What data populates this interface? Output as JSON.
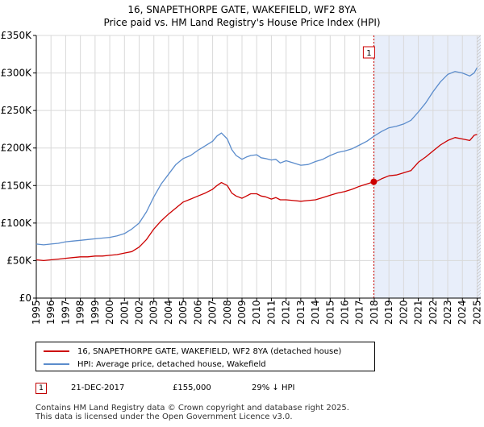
{
  "chart_data": {
    "type": "line",
    "title": "16, SNAPETHORPE GATE, WAKEFIELD, WF2 8YA",
    "subtitle": "Price paid vs. HM Land Registry's House Price Index (HPI)",
    "xlim": [
      1995,
      2025.25
    ],
    "ylim": [
      0,
      350000
    ],
    "y_ticks": [
      0,
      50000,
      100000,
      150000,
      200000,
      250000,
      300000,
      350000
    ],
    "y_tick_labels": [
      "£0",
      "£50K",
      "£100K",
      "£150K",
      "£200K",
      "£250K",
      "£300K",
      "£350K"
    ],
    "x_ticks": [
      1995,
      1996,
      1997,
      1998,
      1999,
      2000,
      2001,
      2002,
      2003,
      2004,
      2005,
      2006,
      2007,
      2008,
      2009,
      2010,
      2011,
      2012,
      2013,
      2014,
      2015,
      2016,
      2017,
      2018,
      2019,
      2020,
      2021,
      2022,
      2023,
      2024,
      2025
    ],
    "x_tick_labels": [
      "1995",
      "1996",
      "1997",
      "1998",
      "1999",
      "2000",
      "2001",
      "2002",
      "2003",
      "2004",
      "2005",
      "2006",
      "2007",
      "2008",
      "2009",
      "2010",
      "2011",
      "2012",
      "2013",
      "2014",
      "2015",
      "2016",
      "2017",
      "2018",
      "2019",
      "2020",
      "2021",
      "2022",
      "2023",
      "2024",
      "2025"
    ],
    "grid": true,
    "series": [
      {
        "name": "16, SNAPETHORPE GATE, WAKEFIELD, WF2 8YA (detached house)",
        "color": "#cc0000",
        "x": [
          1995.0,
          1995.5,
          1996.0,
          1996.5,
          1997.0,
          1997.5,
          1998.0,
          1998.5,
          1999.0,
          1999.5,
          2000.0,
          2000.5,
          2001.0,
          2001.5,
          2002.0,
          2002.5,
          2003.0,
          2003.5,
          2004.0,
          2004.5,
          2005.0,
          2005.5,
          2006.0,
          2006.5,
          2007.0,
          2007.3,
          2007.6,
          2008.0,
          2008.3,
          2008.6,
          2009.0,
          2009.3,
          2009.6,
          2010.0,
          2010.3,
          2010.6,
          2011.0,
          2011.3,
          2011.6,
          2012.0,
          2012.5,
          2013.0,
          2013.5,
          2014.0,
          2014.5,
          2015.0,
          2015.5,
          2016.0,
          2016.5,
          2017.0,
          2017.5,
          2017.97,
          2018.2,
          2018.5,
          2019.0,
          2019.5,
          2020.0,
          2020.5,
          2021.0,
          2021.5,
          2022.0,
          2022.5,
          2023.0,
          2023.5,
          2024.0,
          2024.5,
          2024.8,
          2025.0
        ],
        "values": [
          51000,
          50000,
          51000,
          52000,
          53000,
          54000,
          55000,
          55000,
          56000,
          56000,
          57000,
          58000,
          60000,
          62000,
          68000,
          78000,
          92000,
          103000,
          112000,
          120000,
          128000,
          132000,
          136000,
          140000,
          145000,
          150000,
          154000,
          150000,
          140000,
          136000,
          133000,
          136000,
          139000,
          139000,
          136000,
          135000,
          132000,
          134000,
          131000,
          131000,
          130000,
          129000,
          130000,
          131000,
          134000,
          137000,
          140000,
          142000,
          145000,
          149000,
          152000,
          155000,
          156000,
          159000,
          163000,
          164000,
          167000,
          170000,
          181000,
          188000,
          196000,
          204000,
          210000,
          214000,
          212000,
          210000,
          217000,
          218000
        ]
      },
      {
        "name": "HPI: Average price, detached house, Wakefield",
        "color": "#5b8ccc",
        "x": [
          1995.0,
          1995.5,
          1996.0,
          1996.5,
          1997.0,
          1997.5,
          1998.0,
          1998.5,
          1999.0,
          1999.5,
          2000.0,
          2000.5,
          2001.0,
          2001.5,
          2002.0,
          2002.5,
          2003.0,
          2003.5,
          2004.0,
          2004.5,
          2005.0,
          2005.5,
          2006.0,
          2006.5,
          2007.0,
          2007.3,
          2007.6,
          2008.0,
          2008.3,
          2008.6,
          2009.0,
          2009.3,
          2009.6,
          2010.0,
          2010.3,
          2010.6,
          2011.0,
          2011.3,
          2011.6,
          2012.0,
          2012.5,
          2013.0,
          2013.5,
          2014.0,
          2014.5,
          2015.0,
          2015.5,
          2016.0,
          2016.5,
          2017.0,
          2017.5,
          2018.0,
          2018.5,
          2019.0,
          2019.5,
          2020.0,
          2020.5,
          2021.0,
          2021.5,
          2022.0,
          2022.5,
          2023.0,
          2023.5,
          2024.0,
          2024.5,
          2024.8,
          2025.0
        ],
        "values": [
          72000,
          71000,
          72000,
          73000,
          75000,
          76000,
          77000,
          78000,
          79000,
          80000,
          81000,
          83000,
          86000,
          92000,
          100000,
          115000,
          135000,
          152000,
          165000,
          178000,
          186000,
          190000,
          197000,
          203000,
          209000,
          216000,
          220000,
          212000,
          198000,
          190000,
          185000,
          188000,
          190000,
          191000,
          187000,
          186000,
          184000,
          185000,
          180000,
          183000,
          180000,
          177000,
          178000,
          182000,
          185000,
          190000,
          194000,
          196000,
          199000,
          204000,
          209000,
          216000,
          222000,
          227000,
          229000,
          232000,
          237000,
          248000,
          260000,
          275000,
          288000,
          298000,
          302000,
          300000,
          296000,
          300000,
          307000
        ]
      }
    ],
    "vline": {
      "x": 2017.97,
      "label": "1"
    },
    "sale_point": {
      "x": 2017.97,
      "y": 155000
    }
  },
  "legend": [
    {
      "label": "16, SNAPETHORPE GATE, WAKEFIELD, WF2 8YA (detached house)",
      "color": "#cc0000"
    },
    {
      "label": "HPI: Average price, detached house, Wakefield",
      "color": "#5b8ccc"
    }
  ],
  "sale": {
    "marker": "1",
    "date": "21-DEC-2017",
    "price": "£155,000",
    "hpi_diff": "29% ↓ HPI"
  },
  "footer": {
    "line1": "Contains HM Land Registry data © Crown copyright and database right 2025.",
    "line2": "This data is licensed under the Open Government Licence v3.0."
  }
}
